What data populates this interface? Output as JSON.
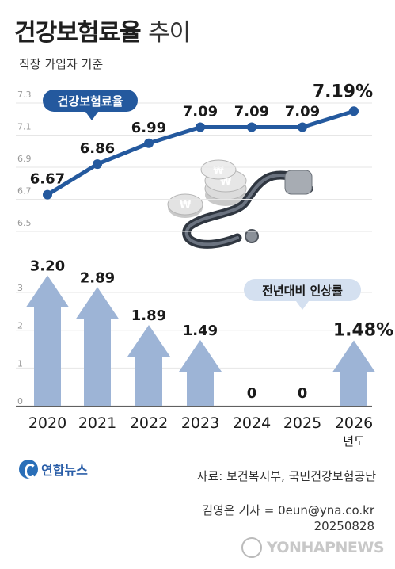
{
  "header": {
    "title_bold": "건강보험료율",
    "title_light": "추이",
    "subtitle": "직장 가입자 기준"
  },
  "chart_data": [
    {
      "type": "line",
      "label_badge": "건강보험료율",
      "x": [
        "2020",
        "2021",
        "2022",
        "2023",
        "2024",
        "2025",
        "2026"
      ],
      "values": [
        6.67,
        6.86,
        6.99,
        7.09,
        7.09,
        7.09,
        7.19
      ],
      "value_labels": [
        "6.67",
        "6.86",
        "6.99",
        "7.09",
        "7.09",
        "7.09",
        "7.19%"
      ],
      "yticks": [
        "7.3",
        "7.1",
        "6.9",
        "6.7",
        "6.5"
      ],
      "ylim": [
        6.5,
        7.3
      ],
      "color": "#24599e"
    },
    {
      "type": "bar",
      "label_badge": "전년대비 인상률",
      "categories": [
        "2020",
        "2021",
        "2022",
        "2023",
        "2024",
        "2025",
        "2026"
      ],
      "category_sub": [
        "",
        "",
        "",
        "",
        "",
        "",
        "년도"
      ],
      "values": [
        3.2,
        2.89,
        1.89,
        1.49,
        0,
        0,
        1.48
      ],
      "value_labels": [
        "3.20",
        "2.89",
        "1.89",
        "1.49",
        "0",
        "0",
        "1.48%"
      ],
      "yticks": [
        "3",
        "2",
        "1",
        "0"
      ],
      "ylim": [
        0,
        3.4
      ],
      "color": "#9db4d6"
    }
  ],
  "footer": {
    "logo_text": "연합뉴스",
    "source": "자료: 보건복지부, 국민건강보험공단",
    "reporter": "김영은 기자 = 0eun@yna.co.kr",
    "date": "20250828",
    "watermark": "YONHAPNEWS"
  }
}
